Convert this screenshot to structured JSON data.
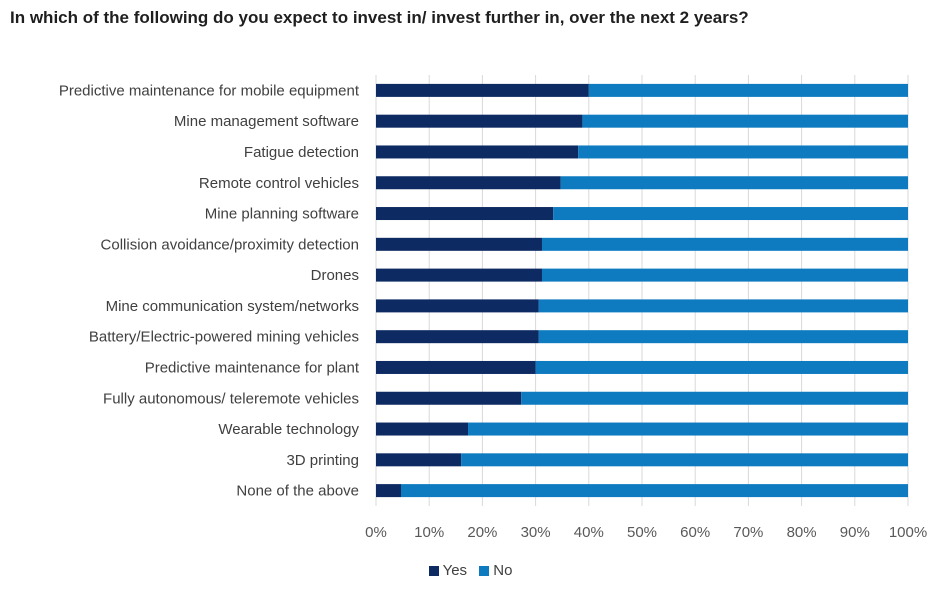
{
  "title": "In which of the following do you expect to invest in/ invest further in, over the next 2 years?",
  "chart_data": {
    "type": "bar",
    "orientation": "horizontal",
    "stacked": "100%",
    "categories": [
      "Predictive maintenance for mobile equipment",
      "Mine management software ",
      "Fatigue detection",
      "Remote control vehicles",
      "Mine planning software",
      "Collision avoidance/proximity detection",
      "Drones",
      "Mine communication system/networks",
      "Battery/Electric-powered mining vehicles",
      "Predictive maintenance for plant",
      "Fully autonomous/ teleremote vehicles",
      "Wearable technology",
      "3D printing ",
      "None of the above"
    ],
    "series": [
      {
        "name": "Yes",
        "color": "#0d2a63",
        "values": [
          40,
          38.8,
          38,
          34.7,
          33.3,
          31.2,
          31.2,
          30.6,
          30.6,
          30,
          27.3,
          17.3,
          16,
          4.7
        ]
      },
      {
        "name": "No",
        "color": "#0e7bc0",
        "values": [
          60,
          61.2,
          62,
          65.3,
          66.7,
          68.8,
          68.8,
          69.4,
          69.4,
          70,
          72.7,
          82.7,
          84,
          95.3
        ]
      }
    ],
    "xlim": [
      0,
      100
    ],
    "xticks": [
      "0%",
      "10%",
      "20%",
      "30%",
      "40%",
      "50%",
      "60%",
      "70%",
      "80%",
      "90%",
      "100%"
    ],
    "grid": "vertical",
    "legend": "bottom"
  }
}
